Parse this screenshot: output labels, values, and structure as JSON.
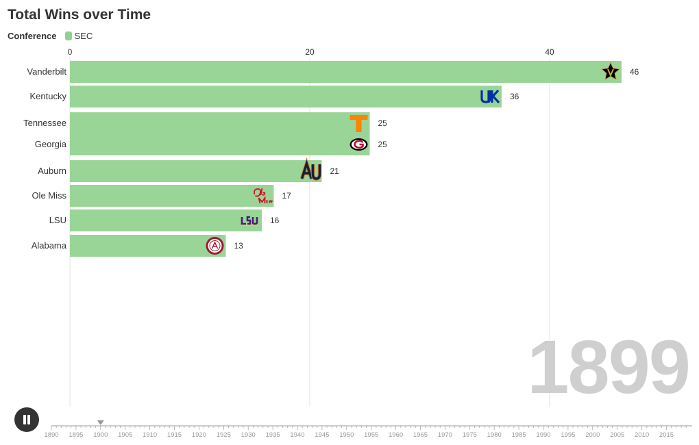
{
  "header": {
    "title": "Total Wins over Time"
  },
  "legend": {
    "title": "Conference",
    "items": [
      {
        "label": "SEC",
        "color": "#91d18f"
      }
    ]
  },
  "current_year": "1899",
  "controls": {
    "play_state": "playing"
  },
  "timeline": {
    "ticks": [
      "1890",
      "1895",
      "1900",
      "1905",
      "1910",
      "1915",
      "1920",
      "1925",
      "1930",
      "1935",
      "1940",
      "1945",
      "1950",
      "1955",
      "1960",
      "1965",
      "1970",
      "1975",
      "1980",
      "1985",
      "1990",
      "1995",
      "2000",
      "2005",
      "2010",
      "2015"
    ],
    "current": 1900
  },
  "chart_data": {
    "type": "bar",
    "orientation": "horizontal",
    "title": "Total Wins over Time",
    "categories": [
      "Vanderbilt",
      "Kentucky",
      "Tennessee",
      "Georgia",
      "Auburn",
      "Ole Miss",
      "LSU",
      "Alabama"
    ],
    "values": [
      46,
      36,
      25,
      25,
      21,
      17,
      16,
      13
    ],
    "series": [
      {
        "name": "SEC",
        "values": [
          46,
          36,
          25,
          25,
          21,
          17,
          16,
          13
        ]
      }
    ],
    "xaxis": {
      "ticks": [
        0,
        20,
        40
      ],
      "range": [
        0,
        52
      ],
      "position": "top"
    },
    "grid": true,
    "bar_color": "#91d18f",
    "logos": [
      "vanderbilt-star-v",
      "kentucky-uk",
      "tennessee-t",
      "georgia-g",
      "auburn-au",
      "ole-miss-script",
      "lsu-wordmark",
      "alabama-seal"
    ],
    "logo_colors": [
      "#000000",
      "#0033a0",
      "#ff8200",
      "#ba0c2f",
      "#0c2340",
      "#ce1126",
      "#461d7c",
      "#9e1b32"
    ]
  }
}
